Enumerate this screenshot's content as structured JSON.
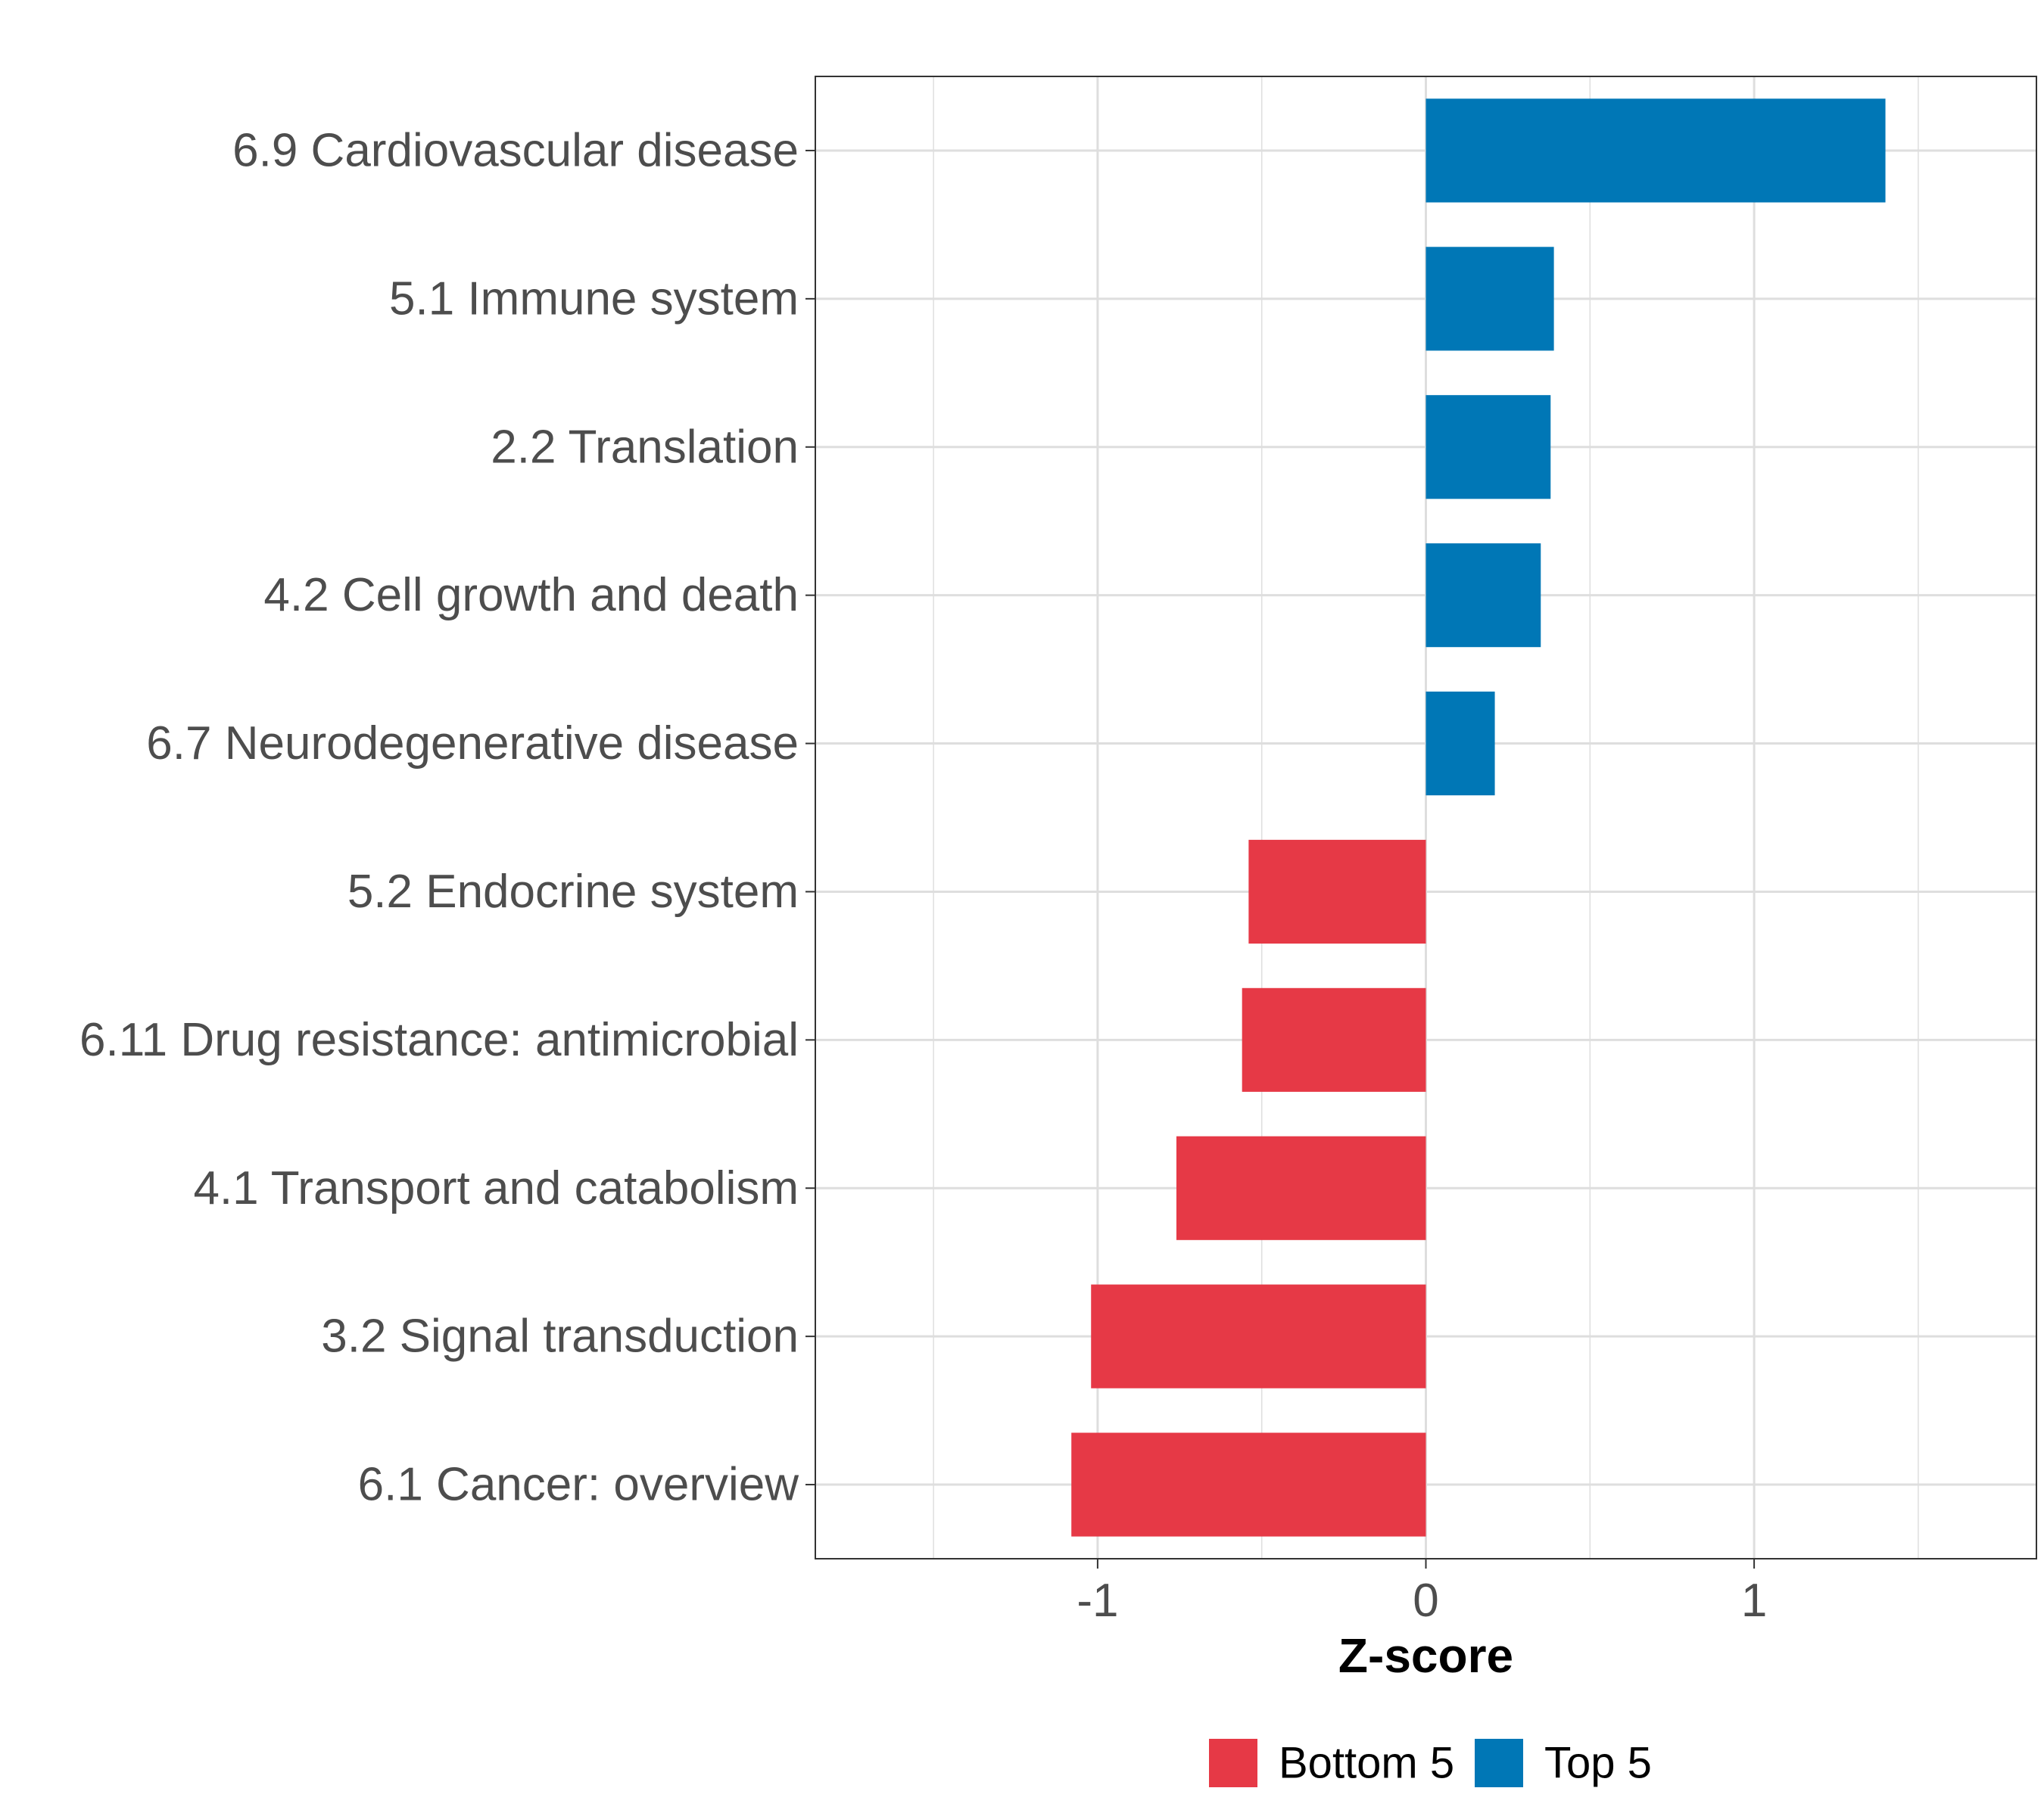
{
  "chart_data": {
    "type": "bar",
    "orientation": "horizontal",
    "title": "",
    "xlabel": "Z-score",
    "ylabel": "",
    "xlim": [
      -1.86,
      1.86
    ],
    "xticks": [
      -1,
      0,
      1
    ],
    "xtick_labels": [
      "-1",
      "0",
      "1"
    ],
    "grid": true,
    "categories": [
      "6.9 Cardiovascular disease",
      "5.1 Immune system",
      "2.2 Translation",
      "4.2 Cell growth and death",
      "6.7 Neurodegenerative disease",
      "5.2 Endocrine system",
      "6.11 Drug resistance: antimicrobial",
      "4.1 Transport and catabolism",
      "3.2 Signal transduction",
      "6.1 Cancer: overview"
    ],
    "values": [
      1.4,
      0.39,
      0.38,
      0.35,
      0.21,
      -0.54,
      -0.56,
      -0.76,
      -1.02,
      -1.08
    ],
    "groups": [
      "Top 5",
      "Top 5",
      "Top 5",
      "Top 5",
      "Top 5",
      "Bottom 5",
      "Bottom 5",
      "Bottom 5",
      "Bottom 5",
      "Bottom 5"
    ],
    "legend": {
      "placement": "bottom",
      "entries": [
        {
          "label": "Bottom 5",
          "color": "#E63946"
        },
        {
          "label": "Top 5",
          "color": "#0077B6"
        }
      ]
    },
    "colors": {
      "Top 5": "#0077B6",
      "Bottom 5": "#E63946"
    }
  }
}
